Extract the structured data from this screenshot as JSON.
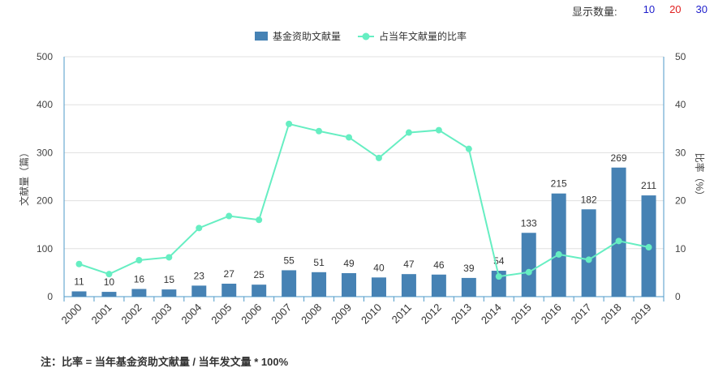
{
  "display_count": {
    "label": "显示数量:",
    "options": [
      {
        "label": "10",
        "color": "#1f1fcc"
      },
      {
        "label": "20",
        "color": "#e02020"
      },
      {
        "label": "30",
        "color": "#1f1fcc"
      }
    ]
  },
  "note": "注：比率 = 当年基金资助文献量 / 当年发文量 * 100%",
  "chart_data": {
    "type": "bar+line",
    "categories": [
      "2000",
      "2001",
      "2002",
      "2003",
      "2004",
      "2005",
      "2006",
      "2007",
      "2008",
      "2009",
      "2010",
      "2011",
      "2012",
      "2013",
      "2014",
      "2015",
      "2016",
      "2017",
      "2018",
      "2019"
    ],
    "series": [
      {
        "name": "基金资助文献量",
        "type": "bar",
        "axis": "left",
        "color": "#4682b4",
        "values": [
          11,
          10,
          16,
          15,
          23,
          27,
          25,
          55,
          51,
          49,
          40,
          47,
          46,
          39,
          54,
          133,
          215,
          182,
          269,
          211
        ]
      },
      {
        "name": "占当年文献量的比率",
        "type": "line",
        "axis": "right",
        "color": "#66eec2",
        "values": [
          6.8,
          4.7,
          7.6,
          8.2,
          14.3,
          16.8,
          16.0,
          36.0,
          34.5,
          33.2,
          28.9,
          34.2,
          34.7,
          30.8,
          4.2,
          5.1,
          8.8,
          7.7,
          11.6,
          10.3
        ]
      }
    ],
    "ylabel_left": "文献量（篇）",
    "ylabel_right": "比率（%）",
    "ylim_left": [
      0,
      500
    ],
    "ylim_right": [
      0,
      50
    ],
    "yticks_left": [
      "0",
      "100",
      "200",
      "300",
      "400",
      "500"
    ],
    "yticks_right": [
      "0",
      "10",
      "20",
      "30",
      "40",
      "50"
    ],
    "legend_position": "top-center",
    "grid": true
  }
}
